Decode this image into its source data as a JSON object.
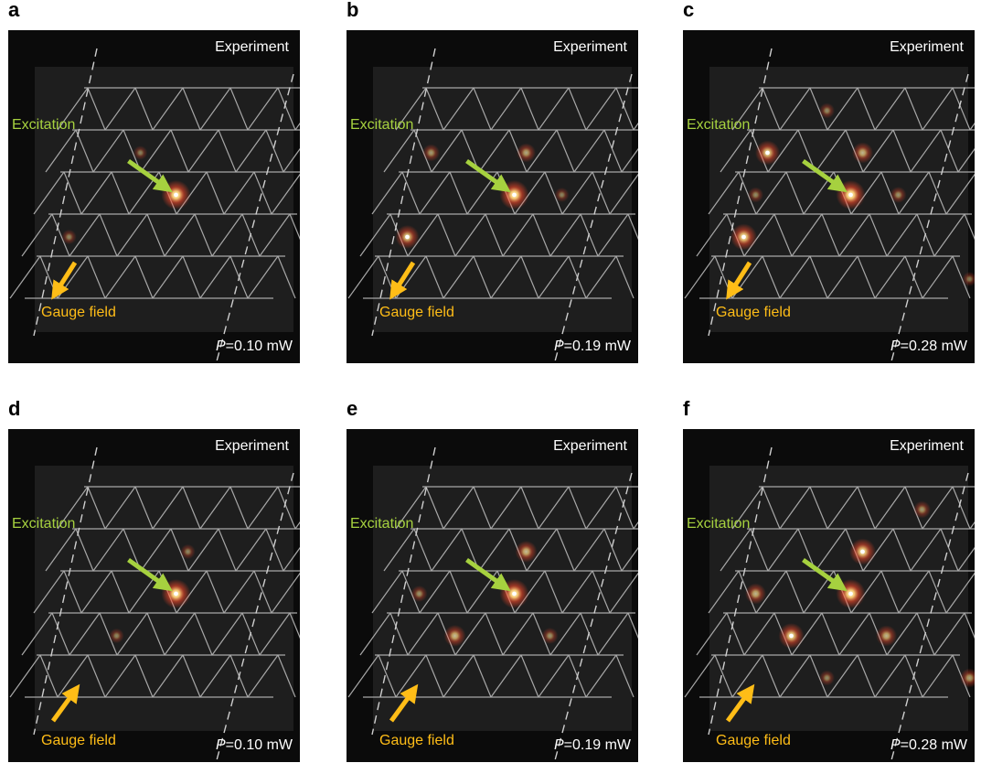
{
  "panels": [
    {
      "letter": "a",
      "title": "Experiment",
      "power_symbol": "P",
      "power_value": "=0.10 mW",
      "excitation_label": "Excitation",
      "gauge_label": "Gauge field",
      "gauge_direction": "down-left",
      "spots": [
        [
          2,
          2,
          1.0
        ],
        [
          1,
          1,
          0.18
        ],
        [
          0,
          3,
          0.22
        ]
      ]
    },
    {
      "letter": "b",
      "title": "Experiment",
      "power_symbol": "P",
      "power_value": "=0.19 mW",
      "excitation_label": "Excitation",
      "gauge_label": "Gauge field",
      "gauge_direction": "down-left",
      "spots": [
        [
          2,
          2,
          1.0
        ],
        [
          0,
          1,
          0.35
        ],
        [
          2,
          1,
          0.45
        ],
        [
          0,
          3,
          0.7
        ],
        [
          3,
          2,
          0.2
        ]
      ]
    },
    {
      "letter": "c",
      "title": "Experiment",
      "power_symbol": "P",
      "power_value": "=0.28 mW",
      "excitation_label": "Excitation",
      "gauge_label": "Gauge field",
      "gauge_direction": "down-left",
      "spots": [
        [
          2,
          2,
          1.0
        ],
        [
          0,
          1,
          0.75
        ],
        [
          2,
          1,
          0.55
        ],
        [
          0,
          3,
          0.85
        ],
        [
          1,
          0,
          0.25
        ],
        [
          0,
          2,
          0.25
        ],
        [
          3,
          2,
          0.3
        ],
        [
          5,
          4,
          0.2
        ]
      ]
    },
    {
      "letter": "d",
      "title": "Experiment",
      "power_symbol": "P",
      "power_value": "=0.10 mW",
      "excitation_label": "Excitation",
      "gauge_label": "Gauge field",
      "gauge_direction": "up-right",
      "spots": [
        [
          2,
          2,
          1.0
        ],
        [
          2,
          1,
          0.22
        ],
        [
          1,
          3,
          0.22
        ]
      ]
    },
    {
      "letter": "e",
      "title": "Experiment",
      "power_symbol": "P",
      "power_value": "=0.19 mW",
      "excitation_label": "Excitation",
      "gauge_label": "Gauge field",
      "gauge_direction": "up-right",
      "spots": [
        [
          2,
          2,
          1.0
        ],
        [
          2,
          1,
          0.6
        ],
        [
          1,
          3,
          0.6
        ],
        [
          0,
          2,
          0.3
        ],
        [
          3,
          3,
          0.3
        ]
      ]
    },
    {
      "letter": "f",
      "title": "Experiment",
      "power_symbol": "P",
      "power_value": "=0.28 mW",
      "excitation_label": "Excitation",
      "gauge_label": "Gauge field",
      "gauge_direction": "up-right",
      "spots": [
        [
          2,
          2,
          1.0
        ],
        [
          2,
          1,
          0.85
        ],
        [
          1,
          3,
          0.8
        ],
        [
          0,
          2,
          0.55
        ],
        [
          3,
          3,
          0.55
        ],
        [
          3,
          0,
          0.35
        ],
        [
          2,
          4,
          0.25
        ],
        [
          5,
          4,
          0.45
        ]
      ]
    }
  ],
  "colors": {
    "panel_background": "#0b0b0b",
    "lattice_background": "#1e1e1e",
    "lattice_line": "#a8a8a8",
    "excitation_arrow": "#a6d13f",
    "gauge_arrow": "#ffbd17",
    "spot_core": "#fff6c8",
    "spot_glow": "#ff4a2a"
  }
}
